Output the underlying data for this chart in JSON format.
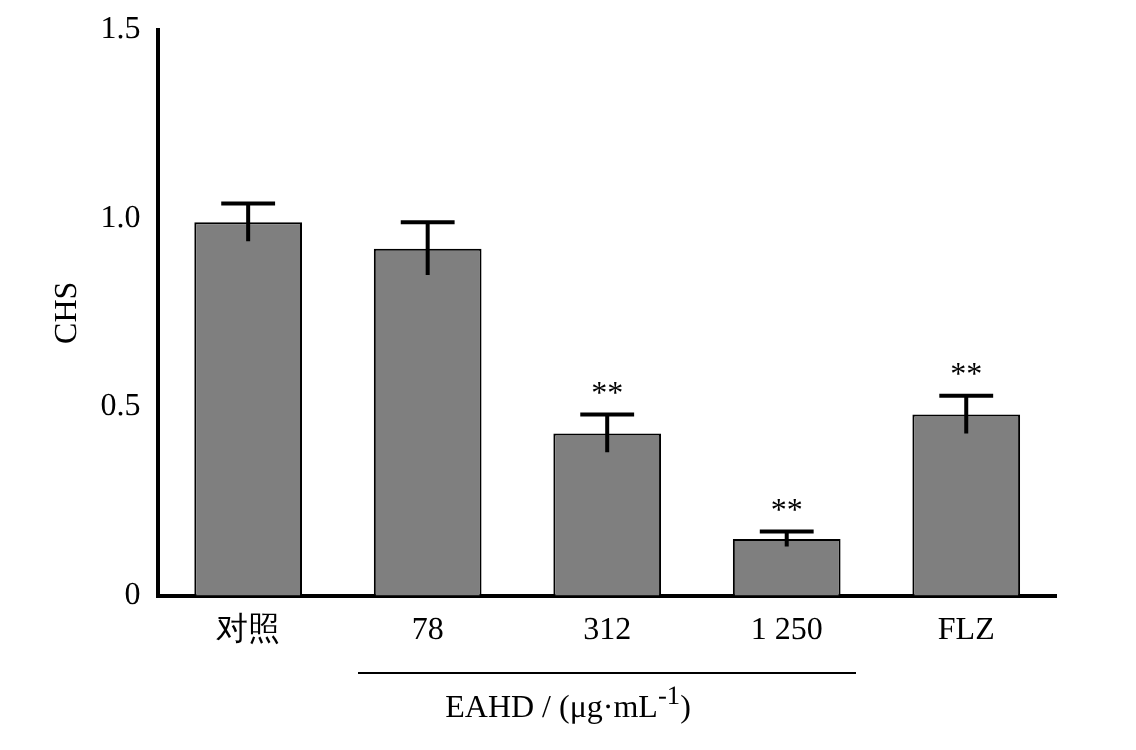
{
  "chart_data": {
    "type": "bar",
    "ylabel": "CHS",
    "xlabel": "EAHD / (μg·mL$^{-1}$)",
    "categories": [
      "对照",
      "78",
      "312",
      "1 250",
      "FLZ"
    ],
    "values": [
      0.99,
      0.92,
      0.43,
      0.15,
      0.48
    ],
    "errors": [
      0.05,
      0.07,
      0.05,
      0.02,
      0.05
    ],
    "color": "#7f7f7f",
    "ylim": [
      0,
      1.5
    ],
    "yticks": [
      0,
      0.5,
      {
        "value": 1,
        "label": "1.0"
      },
      1.5
    ],
    "grid": false,
    "legend": false,
    "annotations": [
      {
        "text": "**",
        "x": "312",
        "y": 0.48
      },
      {
        "text": "**",
        "x": "1 250",
        "y": 0.17
      },
      {
        "text": "**",
        "x": "FLZ",
        "y": 0.53
      }
    ]
  }
}
